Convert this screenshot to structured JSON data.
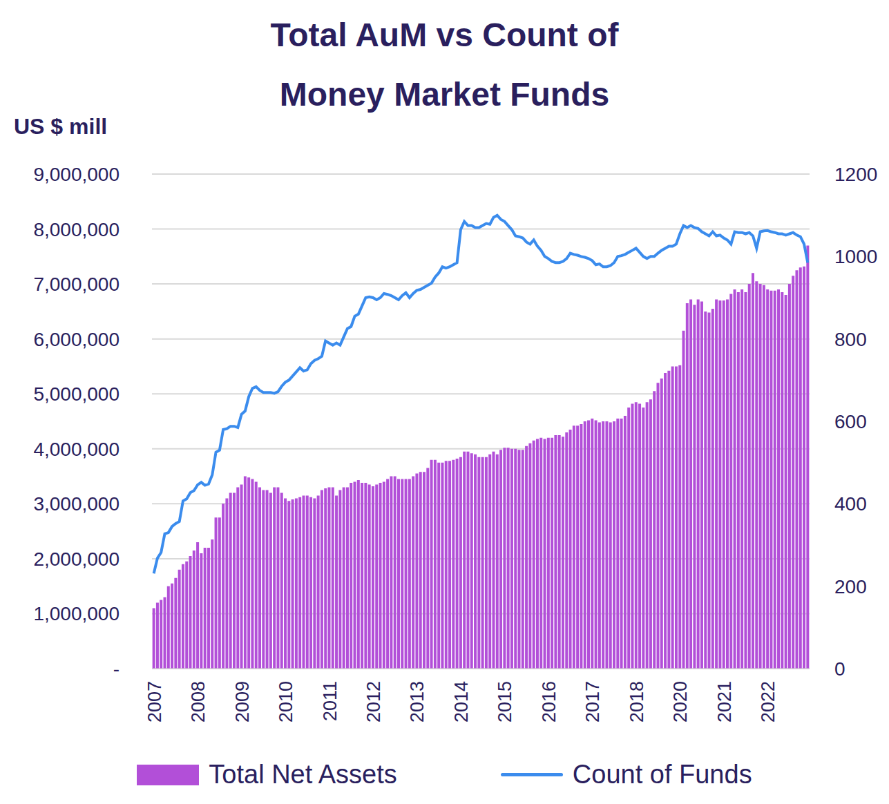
{
  "chart_data": {
    "type": "bar_line",
    "title": "Total AuM vs Count of Money Market Funds",
    "y_label": "US $ mill",
    "categories": [
      "2007",
      null,
      null,
      null,
      null,
      null,
      null,
      null,
      null,
      null,
      null,
      null,
      "2008",
      null,
      null,
      null,
      null,
      null,
      null,
      null,
      null,
      null,
      null,
      null,
      "2009",
      null,
      null,
      null,
      null,
      null,
      null,
      null,
      null,
      null,
      null,
      null,
      "2010",
      null,
      null,
      null,
      null,
      null,
      null,
      null,
      null,
      null,
      null,
      null,
      "2011",
      null,
      null,
      null,
      null,
      null,
      null,
      null,
      null,
      null,
      null,
      null,
      "2012",
      null,
      null,
      null,
      null,
      null,
      null,
      null,
      null,
      null,
      null,
      null,
      "2013",
      null,
      null,
      null,
      null,
      null,
      null,
      null,
      null,
      null,
      null,
      null,
      "2014",
      null,
      null,
      null,
      null,
      null,
      null,
      null,
      null,
      null,
      null,
      null,
      "2015",
      null,
      null,
      null,
      null,
      null,
      null,
      null,
      null,
      null,
      null,
      null,
      "2016",
      null,
      null,
      null,
      null,
      null,
      null,
      null,
      null,
      null,
      null,
      null,
      "2017",
      null,
      null,
      null,
      null,
      null,
      null,
      null,
      null,
      null,
      null,
      null,
      "2018",
      null,
      null,
      null,
      null,
      null,
      null,
      null,
      null,
      null,
      null,
      null,
      "2020",
      null,
      null,
      null,
      null,
      null,
      null,
      null,
      null,
      null,
      null,
      null,
      "2021",
      null,
      null,
      null,
      null,
      null,
      null,
      null,
      null,
      null,
      null,
      null,
      "2022",
      null,
      null,
      null,
      null,
      null,
      null,
      null,
      null,
      null,
      null,
      null
    ],
    "series": [
      {
        "name": "Total Net Assets",
        "type": "bar",
        "color": "#b24fd8",
        "values": [
          1100000,
          1200000,
          1250000,
          1300000,
          1500000,
          1550000,
          1650000,
          1800000,
          1900000,
          1950000,
          2050000,
          2150000,
          2300000,
          2100000,
          2200000,
          2200000,
          2350000,
          2750000,
          2750000,
          3000000,
          3100000,
          3200000,
          3200000,
          3300000,
          3350000,
          3500000,
          3480000,
          3450000,
          3400000,
          3300000,
          3250000,
          3250000,
          3200000,
          3300000,
          3300000,
          3200000,
          3100000,
          3050000,
          3080000,
          3100000,
          3120000,
          3150000,
          3150000,
          3120000,
          3100000,
          3150000,
          3250000,
          3280000,
          3300000,
          3300000,
          3150000,
          3250000,
          3300000,
          3300000,
          3380000,
          3400000,
          3430000,
          3380000,
          3380000,
          3350000,
          3320000,
          3350000,
          3380000,
          3400000,
          3450000,
          3500000,
          3500000,
          3450000,
          3450000,
          3450000,
          3450000,
          3500000,
          3550000,
          3580000,
          3580000,
          3650000,
          3800000,
          3800000,
          3750000,
          3750000,
          3780000,
          3780000,
          3800000,
          3820000,
          3850000,
          3950000,
          3950000,
          3920000,
          3900000,
          3850000,
          3850000,
          3850000,
          3900000,
          3950000,
          3900000,
          3980000,
          4020000,
          4020000,
          4000000,
          4000000,
          3980000,
          3980000,
          4050000,
          4100000,
          4150000,
          4180000,
          4200000,
          4180000,
          4200000,
          4200000,
          4250000,
          4250000,
          4220000,
          4300000,
          4350000,
          4420000,
          4420000,
          4450000,
          4500000,
          4520000,
          4550000,
          4520000,
          4480000,
          4500000,
          4500000,
          4480000,
          4500000,
          4550000,
          4550000,
          4600000,
          4750000,
          4820000,
          4850000,
          4820000,
          4750000,
          4850000,
          4900000,
          5050000,
          5200000,
          5280000,
          5380000,
          5420000,
          5500000,
          5500000,
          5520000,
          6150000,
          6650000,
          6720000,
          6620000,
          6720000,
          6680000,
          6500000,
          6480000,
          6550000,
          6720000,
          6700000,
          6700000,
          6720000,
          6820000,
          6900000,
          6850000,
          6900000,
          6850000,
          7000000,
          7200000,
          7050000,
          7000000,
          6980000,
          6900000,
          6880000,
          6880000,
          6900000,
          6850000,
          6800000,
          7000000,
          7150000,
          7250000,
          7300000,
          7320000,
          7700000
        ]
      },
      {
        "name": "Count of Funds",
        "type": "line",
        "color": "#3b8ced",
        "axis": "y2",
        "values": [
          231,
          268,
          282,
          327,
          330,
          345,
          352,
          357,
          407,
          412,
          427,
          432,
          446,
          452,
          445,
          448,
          470,
          525,
          530,
          580,
          582,
          588,
          588,
          585,
          617,
          625,
          660,
          680,
          684,
          675,
          670,
          670,
          670,
          668,
          672,
          685,
          695,
          700,
          710,
          720,
          730,
          722,
          725,
          740,
          748,
          752,
          758,
          795,
          790,
          785,
          790,
          785,
          805,
          825,
          830,
          855,
          860,
          880,
          900,
          902,
          900,
          895,
          900,
          910,
          908,
          905,
          900,
          895,
          905,
          912,
          900,
          910,
          918,
          920,
          925,
          930,
          935,
          950,
          960,
          975,
          972,
          975,
          980,
          985,
          1065,
          1085,
          1075,
          1075,
          1070,
          1070,
          1075,
          1080,
          1078,
          1095,
          1100,
          1090,
          1085,
          1075,
          1065,
          1050,
          1048,
          1045,
          1035,
          1030,
          1040,
          1025,
          1015,
          1000,
          995,
          988,
          985,
          985,
          988,
          995,
          1008,
          1005,
          1003,
          1000,
          998,
          995,
          990,
          980,
          982,
          975,
          975,
          978,
          985,
          1000,
          1002,
          1005,
          1010,
          1015,
          1020,
          1010,
          1000,
          995,
          1000,
          1000,
          1008,
          1015,
          1020,
          1025,
          1025,
          1030,
          1055,
          1075,
          1070,
          1075,
          1070,
          1068,
          1060,
          1055,
          1050,
          1060,
          1050,
          1052,
          1045,
          1040,
          1030,
          1060,
          1058,
          1058,
          1055,
          1058,
          1050,
          1020,
          1060,
          1062,
          1063,
          1060,
          1058,
          1055,
          1055,
          1052,
          1055,
          1058,
          1052,
          1048,
          1030,
          985
        ]
      }
    ],
    "ylim": [
      0,
      9000000
    ],
    "yticks": [
      {
        "value": 0,
        "label": "-"
      },
      {
        "value": 1000000,
        "label": "1,000,000"
      },
      {
        "value": 2000000,
        "label": "2,000,000"
      },
      {
        "value": 3000000,
        "label": "3,000,000"
      },
      {
        "value": 4000000,
        "label": "4,000,000"
      },
      {
        "value": 5000000,
        "label": "5,000,000"
      },
      {
        "value": 6000000,
        "label": "6,000,000"
      },
      {
        "value": 7000000,
        "label": "7,000,000"
      },
      {
        "value": 8000000,
        "label": "8,000,000"
      },
      {
        "value": 9000000,
        "label": "9,000,000"
      }
    ],
    "y2lim": [
      0,
      1200
    ],
    "y2ticks": [
      0,
      200,
      400,
      600,
      800,
      1000,
      1200
    ],
    "grid": true,
    "legend": "bottom"
  }
}
